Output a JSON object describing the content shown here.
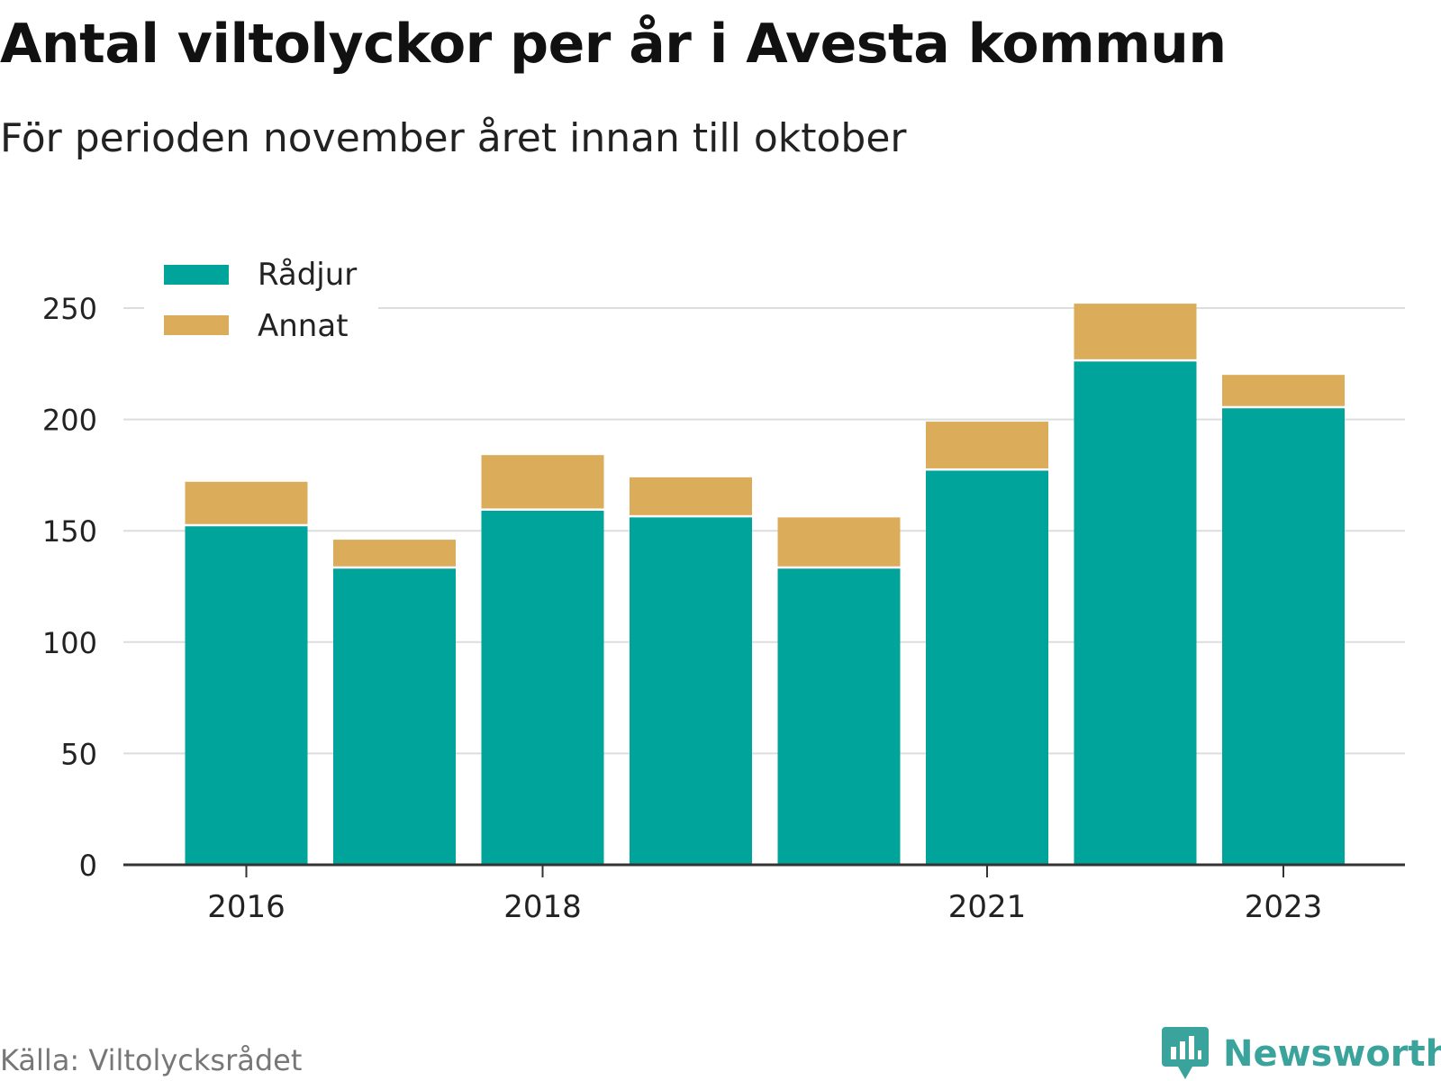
{
  "title": "Antal viltolyckor per år i Avesta kommun",
  "subtitle": "För perioden november året innan till oktober",
  "source": "Källa: Viltolycksrådet",
  "brand": "Newsworthy",
  "colors": {
    "radjur": "#00a49a",
    "annat": "#dbad5a",
    "grid": "#dddddd",
    "axis": "#333333",
    "brand": "#3aa39b"
  },
  "chart_data": {
    "type": "bar",
    "stacked": true,
    "categories": [
      "2016",
      "2017",
      "2018",
      "2019",
      "2020",
      "2021",
      "2022",
      "2023"
    ],
    "x_tick_labels": [
      "2016",
      "",
      "2018",
      "",
      "",
      "2021",
      "",
      "2023"
    ],
    "series": [
      {
        "name": "Rådjur",
        "values": [
          152,
          133,
          159,
          156,
          133,
          177,
          226,
          205
        ]
      },
      {
        "name": "Annat",
        "values": [
          20,
          13,
          25,
          18,
          23,
          22,
          26,
          15
        ]
      }
    ],
    "ylim": [
      0,
      250
    ],
    "yticks": [
      0,
      50,
      100,
      150,
      200,
      250
    ],
    "grid": true,
    "legend_position": "top-left",
    "xlabel": "",
    "ylabel": ""
  }
}
